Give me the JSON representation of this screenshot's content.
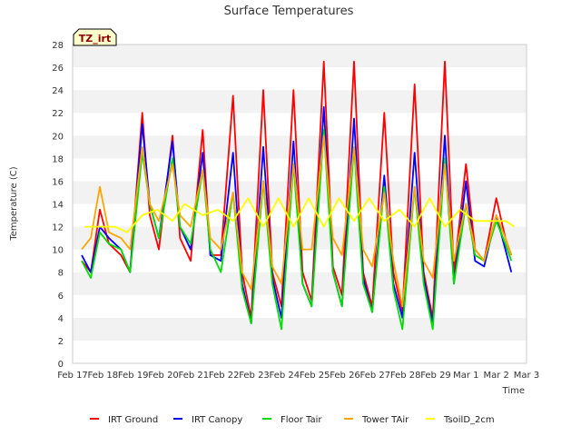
{
  "chart_data": {
    "type": "line",
    "title": "Surface Temperatures",
    "xlabel": "Time",
    "ylabel": "Temperature (C)",
    "ylim": [
      0,
      28
    ],
    "yticks": [
      0,
      2,
      4,
      6,
      8,
      10,
      12,
      14,
      16,
      18,
      20,
      22,
      24,
      26,
      28
    ],
    "xlim": [
      "Feb 17",
      "Mar 3"
    ],
    "xticks": [
      "Feb 17",
      "Feb 18",
      "Feb 19",
      "Feb 20",
      "Feb 21",
      "Feb 22",
      "Feb 23",
      "Feb 24",
      "Feb 25",
      "Feb 26",
      "Feb 27",
      "Feb 28",
      "Feb 29",
      "Mar 1",
      "Mar 2",
      "Mar 3"
    ],
    "tag": "TZ_irt",
    "legend_position": "bottom",
    "grid": "horizontal bands",
    "series": [
      {
        "name": "IRT Ground",
        "color": "#ff0000",
        "x": [
          0.3,
          0.6,
          0.9,
          1.2,
          1.6,
          1.9,
          2.3,
          2.55,
          2.85,
          3.3,
          3.55,
          3.9,
          4.3,
          4.55,
          4.9,
          5.3,
          5.6,
          5.9,
          6.3,
          6.6,
          6.9,
          7.3,
          7.6,
          7.9,
          8.3,
          8.6,
          8.9,
          9.3,
          9.6,
          9.9,
          10.3,
          10.6,
          10.9,
          11.3,
          11.6,
          11.9,
          12.3,
          12.6,
          13.0,
          13.3,
          13.6,
          14.0,
          14.3,
          14.5
        ],
        "y": [
          9.0,
          8.0,
          13.5,
          10.5,
          9.5,
          8.0,
          22.0,
          13.0,
          10.0,
          20.0,
          11.0,
          9.0,
          20.5,
          9.5,
          9.5,
          23.5,
          8.0,
          4.0,
          24.0,
          8.0,
          5.0,
          24.0,
          8.0,
          5.5,
          26.5,
          8.5,
          6.0,
          26.5,
          8.0,
          5.0,
          22.0,
          8.0,
          4.5,
          24.5,
          8.0,
          4.0,
          26.5,
          8.0,
          17.5,
          10.0,
          9.0,
          14.5,
          11.0,
          9.5
        ]
      },
      {
        "name": "IRT Canopy",
        "color": "#0000ff",
        "x": [
          0.3,
          0.6,
          0.9,
          1.2,
          1.6,
          1.9,
          2.3,
          2.55,
          2.85,
          3.3,
          3.55,
          3.9,
          4.3,
          4.55,
          4.9,
          5.3,
          5.6,
          5.9,
          6.3,
          6.6,
          6.9,
          7.3,
          7.6,
          7.9,
          8.3,
          8.6,
          8.9,
          9.3,
          9.6,
          9.9,
          10.3,
          10.6,
          10.9,
          11.3,
          11.6,
          11.9,
          12.3,
          12.6,
          13.0,
          13.3,
          13.6,
          14.0,
          14.3,
          14.5
        ],
        "y": [
          9.5,
          8.0,
          12.0,
          11.0,
          10.0,
          8.0,
          21.0,
          14.0,
          11.0,
          19.5,
          12.0,
          10.0,
          18.5,
          9.5,
          9.0,
          18.5,
          7.0,
          3.5,
          19.0,
          7.5,
          4.0,
          19.5,
          7.0,
          5.0,
          22.5,
          8.0,
          5.0,
          21.5,
          7.5,
          4.5,
          16.5,
          7.0,
          4.0,
          18.5,
          7.5,
          3.5,
          20.0,
          7.0,
          16.0,
          9.0,
          8.5,
          13.0,
          10.0,
          8.0
        ]
      },
      {
        "name": "Floor Tair",
        "color": "#00dd00",
        "x": [
          0.3,
          0.6,
          0.9,
          1.2,
          1.6,
          1.9,
          2.3,
          2.55,
          2.85,
          3.3,
          3.55,
          3.9,
          4.3,
          4.55,
          4.9,
          5.3,
          5.6,
          5.9,
          6.3,
          6.6,
          6.9,
          7.3,
          7.6,
          7.9,
          8.3,
          8.6,
          8.9,
          9.3,
          9.6,
          9.9,
          10.3,
          10.6,
          10.9,
          11.3,
          11.6,
          11.9,
          12.3,
          12.6,
          13.0,
          13.3,
          13.6,
          14.0,
          14.3,
          14.5
        ],
        "y": [
          9.0,
          7.5,
          11.5,
          10.5,
          10.0,
          8.0,
          18.5,
          14.0,
          11.0,
          18.0,
          12.0,
          10.5,
          17.0,
          10.0,
          8.0,
          15.0,
          6.5,
          3.5,
          16.0,
          7.0,
          3.0,
          17.5,
          7.0,
          5.0,
          20.5,
          8.0,
          5.0,
          19.0,
          7.0,
          4.5,
          15.5,
          6.5,
          3.0,
          15.5,
          7.0,
          3.0,
          18.0,
          7.0,
          14.0,
          9.5,
          9.0,
          12.5,
          10.5,
          9.0
        ]
      },
      {
        "name": "Tower TAir",
        "color": "#ffa500",
        "x": [
          0.3,
          0.6,
          0.9,
          1.2,
          1.6,
          1.9,
          2.3,
          2.55,
          2.85,
          3.3,
          3.55,
          3.9,
          4.3,
          4.55,
          4.9,
          5.3,
          5.6,
          5.9,
          6.3,
          6.6,
          6.9,
          7.3,
          7.6,
          7.9,
          8.3,
          8.6,
          8.9,
          9.3,
          9.6,
          9.9,
          10.3,
          10.6,
          10.9,
          11.3,
          11.6,
          11.9,
          12.3,
          12.6,
          13.0,
          13.3,
          13.6,
          14.0,
          14.3,
          14.5
        ],
        "y": [
          10.0,
          11.0,
          15.5,
          11.5,
          11.0,
          10.0,
          19.0,
          14.0,
          12.5,
          17.5,
          13.0,
          12.0,
          17.0,
          11.0,
          10.0,
          15.0,
          8.0,
          6.5,
          16.0,
          8.5,
          7.0,
          17.5,
          10.0,
          10.0,
          20.0,
          11.0,
          9.5,
          19.0,
          10.0,
          8.5,
          15.0,
          9.0,
          5.0,
          15.5,
          9.0,
          7.5,
          17.5,
          9.0,
          14.0,
          10.0,
          9.0,
          13.0,
          11.0,
          9.5
        ]
      },
      {
        "name": "TsoilD_2cm",
        "color": "#ffff00",
        "x": [
          0.4,
          0.9,
          1.4,
          1.8,
          2.3,
          2.8,
          3.3,
          3.7,
          4.3,
          4.8,
          5.3,
          5.8,
          6.3,
          6.8,
          7.3,
          7.8,
          8.3,
          8.8,
          9.3,
          9.8,
          10.3,
          10.8,
          11.3,
          11.8,
          12.3,
          12.8,
          13.3,
          13.8,
          14.3,
          14.6
        ],
        "y": [
          12.0,
          12.0,
          12.0,
          11.5,
          13.0,
          13.5,
          12.5,
          14.0,
          13.0,
          13.5,
          12.5,
          14.5,
          12.0,
          14.5,
          12.0,
          14.5,
          12.0,
          14.5,
          12.5,
          14.5,
          12.5,
          13.5,
          12.0,
          14.5,
          12.0,
          13.5,
          12.5,
          12.5,
          12.5,
          12.0
        ]
      }
    ]
  }
}
